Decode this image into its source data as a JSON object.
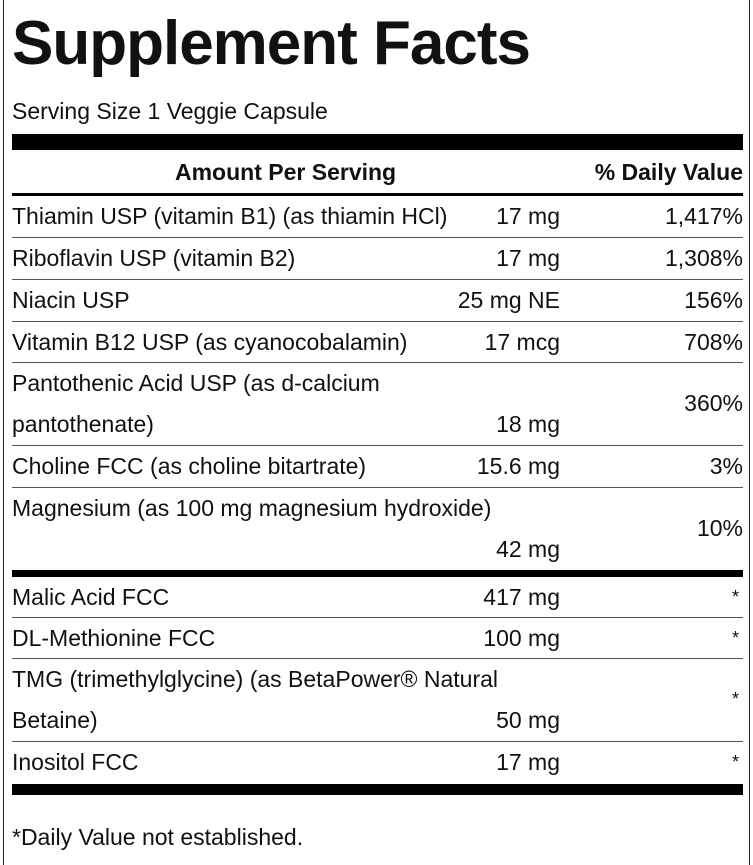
{
  "label": {
    "title": "Supplement Facts",
    "serving_size": "Serving Size 1 Veggie Capsule",
    "header": {
      "amount_per_serving": "Amount Per Serving",
      "daily_value": "% Daily Value"
    },
    "rows_group1": [
      {
        "name": "Thiamin USP (vitamin B1) (as thiamin HCl)",
        "amount": "17 mg",
        "dv": "1,417%"
      },
      {
        "name": "Riboflavin USP (vitamin B2)",
        "amount": "17 mg",
        "dv": "1,308%"
      },
      {
        "name": "Niacin USP",
        "amount": "25 mg NE",
        "dv": "156%"
      },
      {
        "name": "Vitamin B12 USP (as cyanocobalamin)",
        "amount": "17 mcg",
        "dv": "708%"
      },
      {
        "name_line1": "Pantothenic Acid USP (as d-calcium",
        "name_line2": "pantothenate)",
        "amount": "18 mg",
        "dv": "360%"
      },
      {
        "name": "Choline FCC (as choline bitartrate)",
        "amount": "15.6 mg",
        "dv": "3%"
      },
      {
        "name": "Magnesium (as 100 mg magnesium hydroxide)",
        "amount": "42 mg",
        "dv": "10%"
      }
    ],
    "rows_group2": [
      {
        "name": "Malic Acid FCC",
        "amount": "417 mg",
        "dv": "*"
      },
      {
        "name": "DL-Methionine FCC",
        "amount": "100 mg",
        "dv": "*"
      },
      {
        "name_line1": "TMG (trimethylglycine) (as BetaPower® Natural",
        "name_line2": "Betaine)",
        "amount": "50 mg",
        "dv": "*"
      },
      {
        "name": "Inositol FCC",
        "amount": "17 mg",
        "dv": "*"
      }
    ],
    "footnote": "*Daily Value not established."
  }
}
